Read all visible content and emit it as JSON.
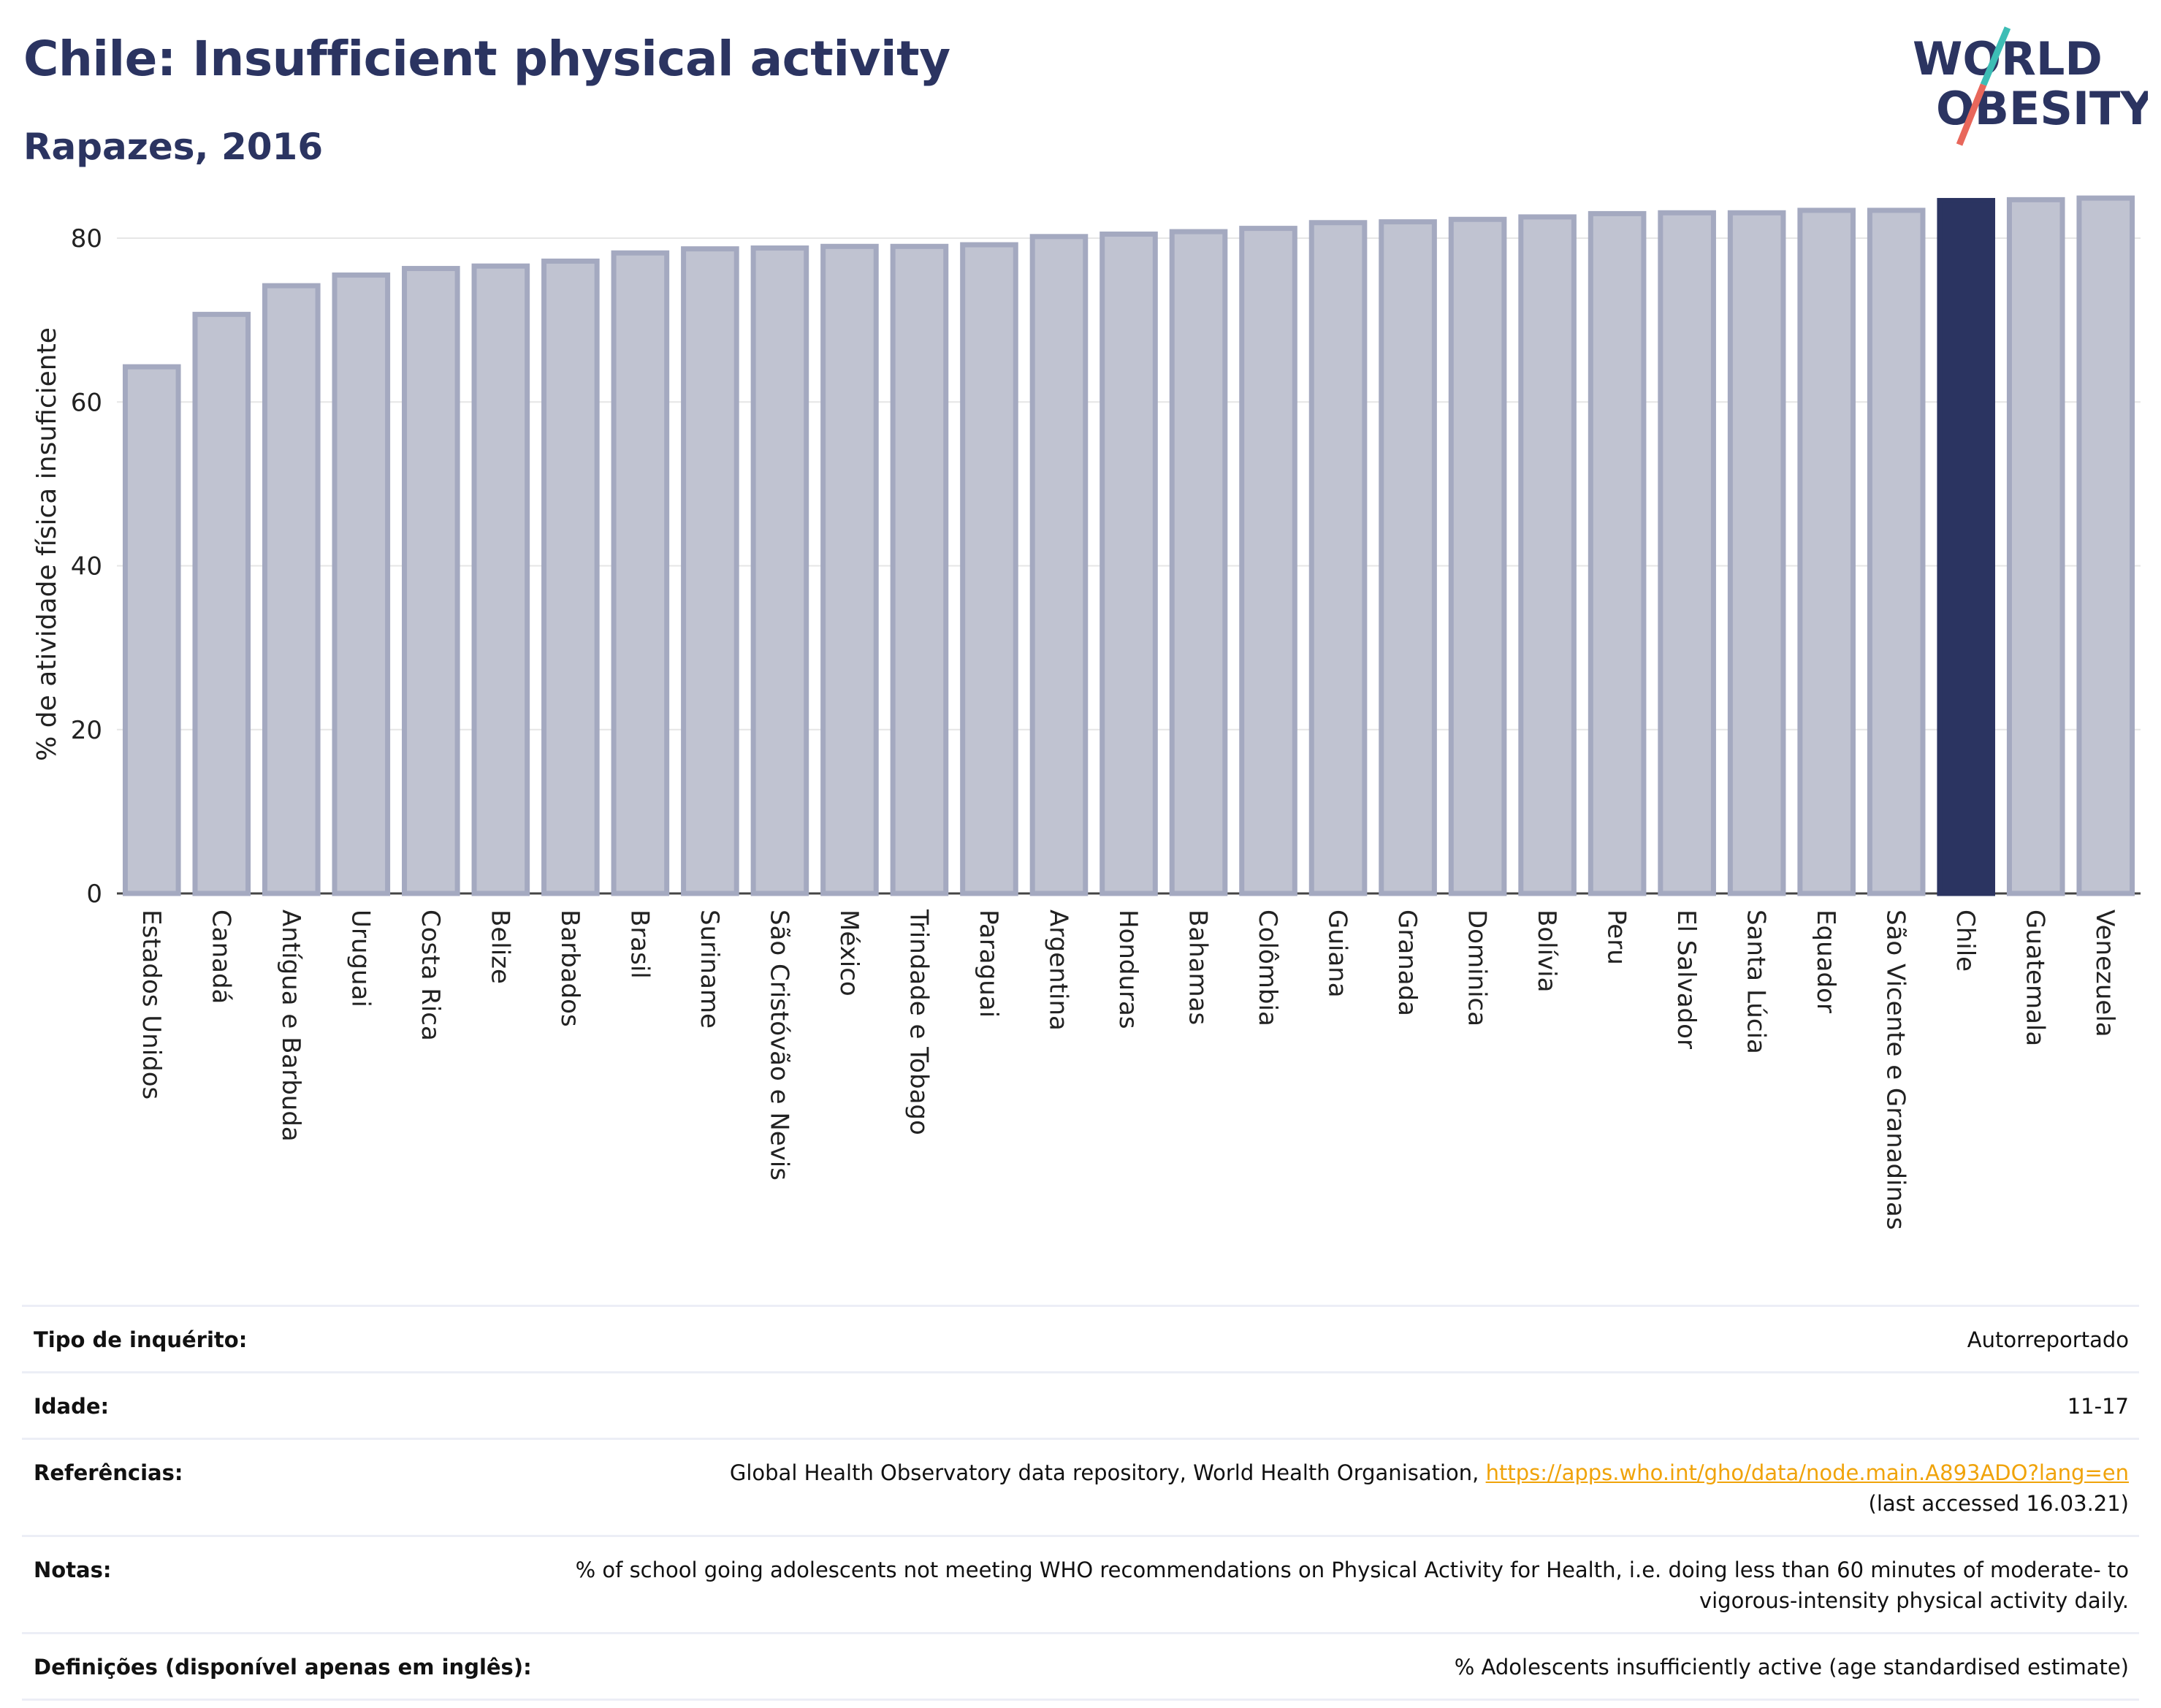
{
  "header": {
    "title": "Chile: Insufficient physical activity",
    "subtitle": "Rapazes, 2016"
  },
  "logo": {
    "line1": "WORLD",
    "line2": "OBESITY",
    "colors": {
      "text": "#2b3461",
      "slash_top": "#3dbdb5",
      "slash_bottom": "#e8675b"
    }
  },
  "colors": {
    "bar_fill": "#c0c3d1",
    "bar_stroke": "#a4a9c0",
    "highlight": "#2b3461",
    "grid": "#e6e6e6",
    "axis": "#444444"
  },
  "chart_data": {
    "type": "bar",
    "ylabel": "% de atividade física insuficiente",
    "ylim": [
      0,
      85
    ],
    "yticks": [
      0,
      20,
      40,
      60,
      80
    ],
    "grid": true,
    "highlight": "Chile",
    "categories": [
      "Estados Unidos",
      "Canadá",
      "Antígua e Barbuda",
      "Uruguai",
      "Costa Rica",
      "Belize",
      "Barbados",
      "Brasil",
      "Suriname",
      "São Cristóvão e Nevis",
      "México",
      "Trindade e Tobago",
      "Paraguai",
      "Argentina",
      "Honduras",
      "Bahamas",
      "Colômbia",
      "Guiana",
      "Granada",
      "Dominica",
      "Bolívia",
      "Peru",
      "El Salvador",
      "Santa Lúcia",
      "Equador",
      "São Vicente e Granadinas",
      "Chile",
      "Guatemala",
      "Venezuela"
    ],
    "values": [
      64.3,
      70.7,
      74.2,
      75.5,
      76.3,
      76.6,
      77.2,
      78.2,
      78.7,
      78.8,
      79.0,
      79.0,
      79.2,
      80.2,
      80.5,
      80.8,
      81.2,
      81.9,
      82.0,
      82.3,
      82.6,
      83.0,
      83.1,
      83.1,
      83.4,
      83.4,
      84.6,
      84.7,
      84.9
    ]
  },
  "meta": {
    "rows": [
      {
        "label": "Tipo de inquérito:",
        "value": "Autorreportado"
      },
      {
        "label": "Idade:",
        "value": "11-17"
      },
      {
        "label": "Referências:",
        "value": "Global Health Observatory data repository, World Health Organisation,",
        "link": "https://apps.who.int/gho/data/node.main.A893ADO?lang=en",
        "suffix": "(last accessed 16.03.21)"
      },
      {
        "label": "Notas:",
        "value": "% of school going adolescents not meeting WHO recommendations on Physical Activity for Health, i.e. doing less than 60 minutes of moderate- to vigorous-intensity physical activity daily."
      },
      {
        "label": "Definições (disponível apenas em inglês):",
        "value": "% Adolescents insufficiently active (age standardised estimate)"
      }
    ]
  }
}
